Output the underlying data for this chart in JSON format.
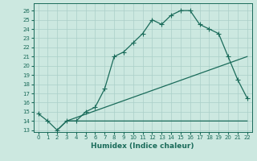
{
  "line1_x": [
    0,
    1,
    2,
    3,
    4,
    5,
    6,
    7,
    8,
    9,
    10,
    11,
    12,
    13,
    14,
    15,
    16,
    17,
    18,
    19,
    20,
    21,
    22
  ],
  "line1_y": [
    14.8,
    14.0,
    13.0,
    14.0,
    14.0,
    15.0,
    15.5,
    17.5,
    21.0,
    21.5,
    22.5,
    23.5,
    25.0,
    24.5,
    25.5,
    26.0,
    26.0,
    24.5,
    24.0,
    23.5,
    21.0,
    18.5,
    16.5
  ],
  "line2_x": [
    2,
    3,
    22
  ],
  "line2_y": [
    13.0,
    14.0,
    14.0
  ],
  "line3_x": [
    3,
    22
  ],
  "line3_y": [
    14.0,
    21.0
  ],
  "color": "#1a6b5a",
  "bg_color": "#cce8e0",
  "grid_color": "#aacfc8",
  "xlabel": "Humidex (Indice chaleur)",
  "xlim": [
    -0.5,
    22.5
  ],
  "ylim_min": 12.8,
  "ylim_max": 26.8,
  "yticks": [
    13,
    14,
    15,
    16,
    17,
    18,
    19,
    20,
    21,
    22,
    23,
    24,
    25,
    26
  ],
  "xticks": [
    0,
    1,
    2,
    3,
    4,
    5,
    6,
    7,
    8,
    9,
    10,
    11,
    12,
    13,
    14,
    15,
    16,
    17,
    18,
    19,
    20,
    21,
    22
  ],
  "label_fontsize": 6.5,
  "tick_fontsize": 5.0,
  "marker_size": 2.5,
  "line_width": 0.9
}
